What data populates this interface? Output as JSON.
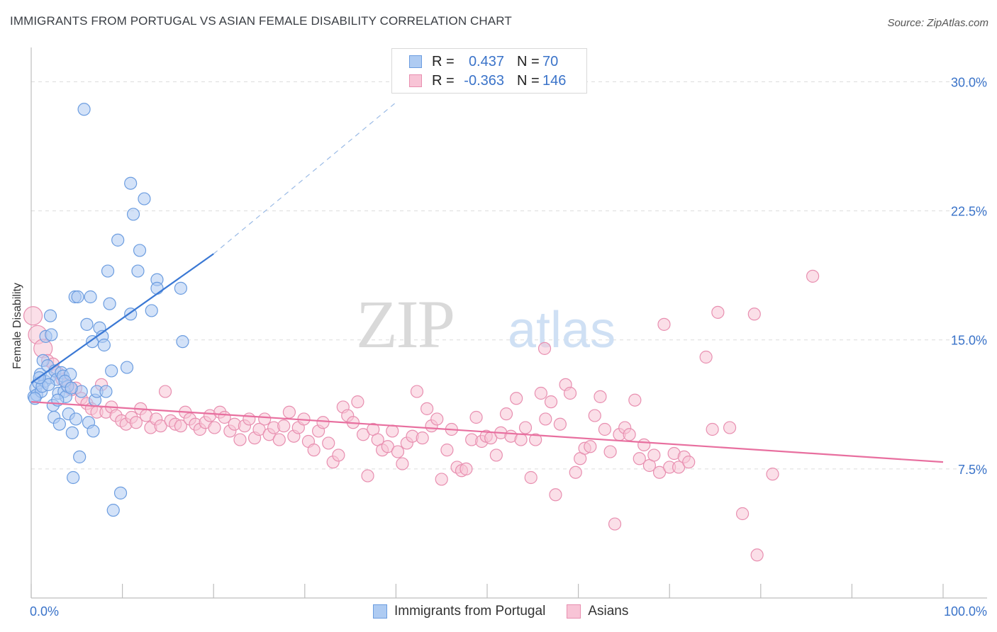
{
  "header": {
    "title": "IMMIGRANTS FROM PORTUGAL VS ASIAN FEMALE DISABILITY CORRELATION CHART",
    "source": "Source: ZipAtlas.com"
  },
  "watermark": {
    "zip": "ZIP",
    "atlas": "atlas"
  },
  "legend": {
    "r_label": "R =",
    "n_label": "N =",
    "rows": [
      {
        "r": "0.437",
        "n": "70",
        "fill": "#aecbf2",
        "stroke": "#6c9de0"
      },
      {
        "r": "-0.363",
        "n": "146",
        "fill": "#f8c4d6",
        "stroke": "#e88fb0"
      }
    ]
  },
  "bottom_legend": [
    {
      "label": "Immigrants from Portugal",
      "fill": "#aecbf2",
      "stroke": "#6c9de0"
    },
    {
      "label": "Asians",
      "fill": "#f8c4d6",
      "stroke": "#e88fb0"
    }
  ],
  "chart_data": {
    "type": "scatter",
    "title": "IMMIGRANTS FROM PORTUGAL VS ASIAN FEMALE DISABILITY CORRELATION CHART",
    "xlabel": "",
    "ylabel": "Female Disability",
    "xlim": [
      0,
      100
    ],
    "ylim": [
      0,
      31.5
    ],
    "x_tick_labels": [
      "0.0%",
      "100.0%"
    ],
    "y_ticks": [
      7.5,
      15.0,
      22.5,
      30.0
    ],
    "y_tick_labels": [
      "7.5%",
      "15.0%",
      "22.5%",
      "30.0%"
    ],
    "grid": true,
    "colors": {
      "blue": "#3a78d4",
      "pink": "#e86f9f",
      "tick_text": "#3a73c9"
    },
    "series": [
      {
        "name": "Immigrants from Portugal",
        "color": "#3a78d4",
        "trend": {
          "x": [
            0,
            20
          ],
          "y": [
            12.5,
            20.0
          ],
          "dashed_to": [
            40,
            28.8
          ]
        },
        "points": [
          [
            0.3,
            11.7
          ],
          [
            0.5,
            12.2
          ],
          [
            0.6,
            11.8
          ],
          [
            0.8,
            12.5
          ],
          [
            1.0,
            13.0
          ],
          [
            1.1,
            12.0
          ],
          [
            1.3,
            13.8
          ],
          [
            1.5,
            12.6
          ],
          [
            1.6,
            15.2
          ],
          [
            1.8,
            13.5
          ],
          [
            2.0,
            12.8
          ],
          [
            2.1,
            16.4
          ],
          [
            2.2,
            15.3
          ],
          [
            2.4,
            11.2
          ],
          [
            2.5,
            10.5
          ],
          [
            2.6,
            13.2
          ],
          [
            2.8,
            12.7
          ],
          [
            3.0,
            11.9
          ],
          [
            3.1,
            10.1
          ],
          [
            3.3,
            13.1
          ],
          [
            3.5,
            12.9
          ],
          [
            3.6,
            12.0
          ],
          [
            3.8,
            11.7
          ],
          [
            4.0,
            12.3
          ],
          [
            4.1,
            10.7
          ],
          [
            4.3,
            13.0
          ],
          [
            4.5,
            9.6
          ],
          [
            4.6,
            7.0
          ],
          [
            4.8,
            17.5
          ],
          [
            4.9,
            10.4
          ],
          [
            5.1,
            17.5
          ],
          [
            5.3,
            8.2
          ],
          [
            5.5,
            12.0
          ],
          [
            5.8,
            28.4
          ],
          [
            6.1,
            15.9
          ],
          [
            6.3,
            10.2
          ],
          [
            6.5,
            17.5
          ],
          [
            6.7,
            14.9
          ],
          [
            6.8,
            9.7
          ],
          [
            7.0,
            11.5
          ],
          [
            7.2,
            12.0
          ],
          [
            7.5,
            15.7
          ],
          [
            7.8,
            15.2
          ],
          [
            8.0,
            14.7
          ],
          [
            8.2,
            12.0
          ],
          [
            8.4,
            19.0
          ],
          [
            8.6,
            17.1
          ],
          [
            8.8,
            13.2
          ],
          [
            9.0,
            5.1
          ],
          [
            9.5,
            20.8
          ],
          [
            9.8,
            6.1
          ],
          [
            10.5,
            13.4
          ],
          [
            10.9,
            24.1
          ],
          [
            10.9,
            16.5
          ],
          [
            11.2,
            22.3
          ],
          [
            11.7,
            19.0
          ],
          [
            11.9,
            20.2
          ],
          [
            12.4,
            23.2
          ],
          [
            13.2,
            16.7
          ],
          [
            13.8,
            18.5
          ],
          [
            13.8,
            18.0
          ],
          [
            16.6,
            14.9
          ],
          [
            16.4,
            18.0
          ],
          [
            0.4,
            11.6
          ],
          [
            1.2,
            12.3
          ],
          [
            2.9,
            11.5
          ],
          [
            3.7,
            12.6
          ],
          [
            1.9,
            12.4
          ],
          [
            0.9,
            12.8
          ],
          [
            4.4,
            12.2
          ]
        ]
      },
      {
        "name": "Asians",
        "color": "#e86f9f",
        "trend": {
          "x": [
            0,
            100
          ],
          "y": [
            11.4,
            7.9
          ]
        },
        "points": [
          [
            0.2,
            16.4
          ],
          [
            0.7,
            15.3
          ],
          [
            1.3,
            14.5
          ],
          [
            1.8,
            13.8
          ],
          [
            2.4,
            13.6
          ],
          [
            2.9,
            13.1
          ],
          [
            3.4,
            12.7
          ],
          [
            3.9,
            12.4
          ],
          [
            4.4,
            12.1
          ],
          [
            4.9,
            12.2
          ],
          [
            5.5,
            11.6
          ],
          [
            6.1,
            11.3
          ],
          [
            6.6,
            11.0
          ],
          [
            7.2,
            10.8
          ],
          [
            7.7,
            12.4
          ],
          [
            8.2,
            10.8
          ],
          [
            8.8,
            11.1
          ],
          [
            9.3,
            10.6
          ],
          [
            9.9,
            10.3
          ],
          [
            10.4,
            10.1
          ],
          [
            11.0,
            10.5
          ],
          [
            11.5,
            10.2
          ],
          [
            12.0,
            11.0
          ],
          [
            12.6,
            10.6
          ],
          [
            13.1,
            9.9
          ],
          [
            13.7,
            10.4
          ],
          [
            14.2,
            10.0
          ],
          [
            14.7,
            12.0
          ],
          [
            15.3,
            10.3
          ],
          [
            15.8,
            10.1
          ],
          [
            16.4,
            10.0
          ],
          [
            16.9,
            10.8
          ],
          [
            17.4,
            10.4
          ],
          [
            18.0,
            10.1
          ],
          [
            18.5,
            9.8
          ],
          [
            19.1,
            10.2
          ],
          [
            19.6,
            10.6
          ],
          [
            20.1,
            9.9
          ],
          [
            20.7,
            10.8
          ],
          [
            21.2,
            10.5
          ],
          [
            21.8,
            9.7
          ],
          [
            22.3,
            10.1
          ],
          [
            22.9,
            9.2
          ],
          [
            23.4,
            10.0
          ],
          [
            23.9,
            10.4
          ],
          [
            24.5,
            9.3
          ],
          [
            25.0,
            9.8
          ],
          [
            25.6,
            10.4
          ],
          [
            26.1,
            9.5
          ],
          [
            26.6,
            9.9
          ],
          [
            27.2,
            9.2
          ],
          [
            27.7,
            10.0
          ],
          [
            28.3,
            10.8
          ],
          [
            28.8,
            9.4
          ],
          [
            29.3,
            9.9
          ],
          [
            29.9,
            10.4
          ],
          [
            30.4,
            9.1
          ],
          [
            31.0,
            8.6
          ],
          [
            31.5,
            9.7
          ],
          [
            32.0,
            10.2
          ],
          [
            32.6,
            9.0
          ],
          [
            33.1,
            7.9
          ],
          [
            33.7,
            8.3
          ],
          [
            34.2,
            11.1
          ],
          [
            34.7,
            10.6
          ],
          [
            35.3,
            10.2
          ],
          [
            35.8,
            11.4
          ],
          [
            36.4,
            9.5
          ],
          [
            36.9,
            7.1
          ],
          [
            37.5,
            9.8
          ],
          [
            38.0,
            9.2
          ],
          [
            38.5,
            8.6
          ],
          [
            39.1,
            8.8
          ],
          [
            39.6,
            9.7
          ],
          [
            40.2,
            8.5
          ],
          [
            40.7,
            7.8
          ],
          [
            41.2,
            9.0
          ],
          [
            41.8,
            9.4
          ],
          [
            42.3,
            12.0
          ],
          [
            42.9,
            9.3
          ],
          [
            43.4,
            11.0
          ],
          [
            43.9,
            10.0
          ],
          [
            44.5,
            10.4
          ],
          [
            45.0,
            6.9
          ],
          [
            45.6,
            8.6
          ],
          [
            46.1,
            9.8
          ],
          [
            46.7,
            7.6
          ],
          [
            47.2,
            7.4
          ],
          [
            47.7,
            7.5
          ],
          [
            48.3,
            9.2
          ],
          [
            48.8,
            10.5
          ],
          [
            49.4,
            9.1
          ],
          [
            49.9,
            9.4
          ],
          [
            50.4,
            9.3
          ],
          [
            51.0,
            8.3
          ],
          [
            51.5,
            9.6
          ],
          [
            52.1,
            10.7
          ],
          [
            52.6,
            9.4
          ],
          [
            53.2,
            11.6
          ],
          [
            53.7,
            9.2
          ],
          [
            54.2,
            9.9
          ],
          [
            54.8,
            7.0
          ],
          [
            55.3,
            9.2
          ],
          [
            55.9,
            11.9
          ],
          [
            56.4,
            10.4
          ],
          [
            57.0,
            11.4
          ],
          [
            57.5,
            6.0
          ],
          [
            58.0,
            10.1
          ],
          [
            58.6,
            12.4
          ],
          [
            59.1,
            11.9
          ],
          [
            59.7,
            7.3
          ],
          [
            60.2,
            8.1
          ],
          [
            60.7,
            8.7
          ],
          [
            61.3,
            8.8
          ],
          [
            61.8,
            10.6
          ],
          [
            62.4,
            11.7
          ],
          [
            62.9,
            9.8
          ],
          [
            63.5,
            8.5
          ],
          [
            64.0,
            4.3
          ],
          [
            64.5,
            9.5
          ],
          [
            65.1,
            9.9
          ],
          [
            65.6,
            9.5
          ],
          [
            66.2,
            11.5
          ],
          [
            66.7,
            8.1
          ],
          [
            67.2,
            8.9
          ],
          [
            67.8,
            7.7
          ],
          [
            68.3,
            8.3
          ],
          [
            68.9,
            7.3
          ],
          [
            69.4,
            15.9
          ],
          [
            70.0,
            7.6
          ],
          [
            70.5,
            8.4
          ],
          [
            71.0,
            7.6
          ],
          [
            71.6,
            8.2
          ],
          [
            72.1,
            7.9
          ],
          [
            74.7,
            9.8
          ],
          [
            76.6,
            9.9
          ],
          [
            74.0,
            14.0
          ],
          [
            75.3,
            16.6
          ],
          [
            78.0,
            4.9
          ],
          [
            79.3,
            16.5
          ],
          [
            81.3,
            7.2
          ],
          [
            85.7,
            18.7
          ],
          [
            79.6,
            2.5
          ],
          [
            56.3,
            14.5
          ]
        ]
      }
    ]
  }
}
